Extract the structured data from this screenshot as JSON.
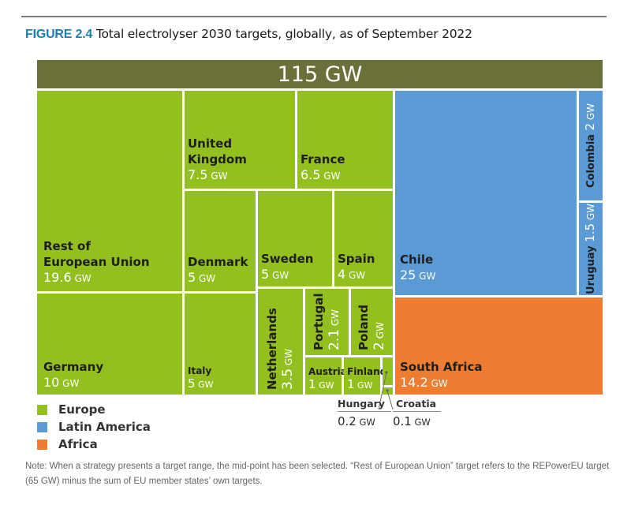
{
  "figure": {
    "number": "FIGURE 2.4",
    "title": "Total electrolyser 2030 targets, globally, as of September 2022"
  },
  "chart_data": {
    "type": "treemap",
    "title": "Total electrolyser 2030 targets, globally, as of September 2022",
    "unit": "GW",
    "total": {
      "label": "115 GW",
      "value": 115
    },
    "regions": [
      {
        "name": "Europe",
        "color": "#93bf1f"
      },
      {
        "name": "Latin America",
        "color": "#5b9bd5"
      },
      {
        "name": "Africa",
        "color": "#ed7d31"
      }
    ],
    "items": [
      {
        "name": "Rest of European Union",
        "label_lines": [
          "Rest of",
          "European Union"
        ],
        "value": 19.6,
        "value_text": "19.6",
        "region": "Europe"
      },
      {
        "name": "Germany",
        "label_lines": [
          "Germany"
        ],
        "value": 10,
        "value_text": "10",
        "region": "Europe"
      },
      {
        "name": "United Kingdom",
        "label_lines": [
          "United",
          "Kingdom"
        ],
        "value": 7.5,
        "value_text": "7.5",
        "region": "Europe"
      },
      {
        "name": "France",
        "label_lines": [
          "France"
        ],
        "value": 6.5,
        "value_text": "6.5",
        "region": "Europe"
      },
      {
        "name": "Denmark",
        "label_lines": [
          "Denmark"
        ],
        "value": 5,
        "value_text": "5",
        "region": "Europe"
      },
      {
        "name": "Italy",
        "label_lines": [
          "Italy"
        ],
        "value": 5,
        "value_text": "5",
        "region": "Europe"
      },
      {
        "name": "Sweden",
        "label_lines": [
          "Sweden"
        ],
        "value": 5,
        "value_text": "5",
        "region": "Europe"
      },
      {
        "name": "Spain",
        "label_lines": [
          "Spain"
        ],
        "value": 4,
        "value_text": "4",
        "region": "Europe"
      },
      {
        "name": "Netherlands",
        "label_lines": [
          "Netherlands"
        ],
        "value": 3.5,
        "value_text": "3.5",
        "region": "Europe"
      },
      {
        "name": "Portugal",
        "label_lines": [
          "Portugal"
        ],
        "value": 2.1,
        "value_text": "2.1",
        "region": "Europe"
      },
      {
        "name": "Poland",
        "label_lines": [
          "Poland"
        ],
        "value": 2,
        "value_text": "2",
        "region": "Europe"
      },
      {
        "name": "Austria",
        "label_lines": [
          "Austria"
        ],
        "value": 1,
        "value_text": "1",
        "region": "Europe"
      },
      {
        "name": "Finland",
        "label_lines": [
          "Finland"
        ],
        "value": 1,
        "value_text": "1",
        "region": "Europe"
      },
      {
        "name": "Hungary",
        "label_lines": [
          "Hungary"
        ],
        "value": 0.2,
        "value_text": "0.2",
        "region": "Europe"
      },
      {
        "name": "Croatia",
        "label_lines": [
          "Croatia"
        ],
        "value": 0.1,
        "value_text": "0.1",
        "region": "Europe"
      },
      {
        "name": "Chile",
        "label_lines": [
          "Chile"
        ],
        "value": 25,
        "value_text": "25",
        "region": "Latin America"
      },
      {
        "name": "Colombia",
        "label_lines": [
          "Colombia"
        ],
        "value": 2,
        "value_text": "2",
        "region": "Latin America"
      },
      {
        "name": "Uruguay",
        "label_lines": [
          "Uruguay"
        ],
        "value": 1.5,
        "value_text": "1.5",
        "region": "Latin America"
      },
      {
        "name": "South Africa",
        "label_lines": [
          "South Africa"
        ],
        "value": 14.2,
        "value_text": "14.2",
        "region": "Africa"
      }
    ],
    "legend": [
      "Europe",
      "Latin America",
      "Africa"
    ],
    "legend_position": "bottom-left"
  },
  "note": "Note: When a strategy presents a target range, the mid-point has been selected. “Rest of European Union” target refers to the REPowerEU target (65 GW) minus the sum of EU member states’ own targets."
}
